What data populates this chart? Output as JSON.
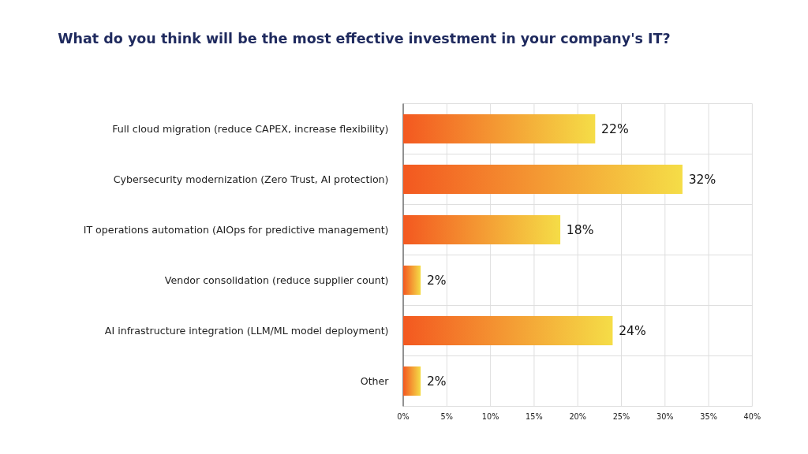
{
  "chart_data": {
    "type": "bar",
    "orientation": "horizontal",
    "title": "What do you think will be the most effective investment in your company's IT?",
    "categories": [
      "Full cloud migration (reduce CAPEX, increase flexibility)",
      "Cybersecurity modernization (Zero Trust, AI protection)",
      "IT operations automation (AIOps for predictive management)",
      "Vendor consolidation (reduce supplier count)",
      "AI infrastructure integration (LLM/ML model deployment)",
      "Other"
    ],
    "values": [
      22,
      32,
      18,
      2,
      24,
      2
    ],
    "value_labels": [
      "22%",
      "32%",
      "18%",
      "2%",
      "24%",
      "2%"
    ],
    "color": "#f39020",
    "xlim": [
      0,
      40
    ],
    "xticks": [
      {
        "value": 0,
        "label": "0%"
      },
      {
        "value": 5,
        "label": "5%"
      },
      {
        "value": 10,
        "label": "10%"
      },
      {
        "value": 15,
        "label": "15%"
      },
      {
        "value": 20,
        "label": "20%"
      },
      {
        "value": 25,
        "label": "25%"
      },
      {
        "value": 30,
        "label": "30%"
      },
      {
        "value": 35,
        "label": "35%"
      },
      {
        "value": 40,
        "label": "40%"
      }
    ],
    "grid": true
  }
}
